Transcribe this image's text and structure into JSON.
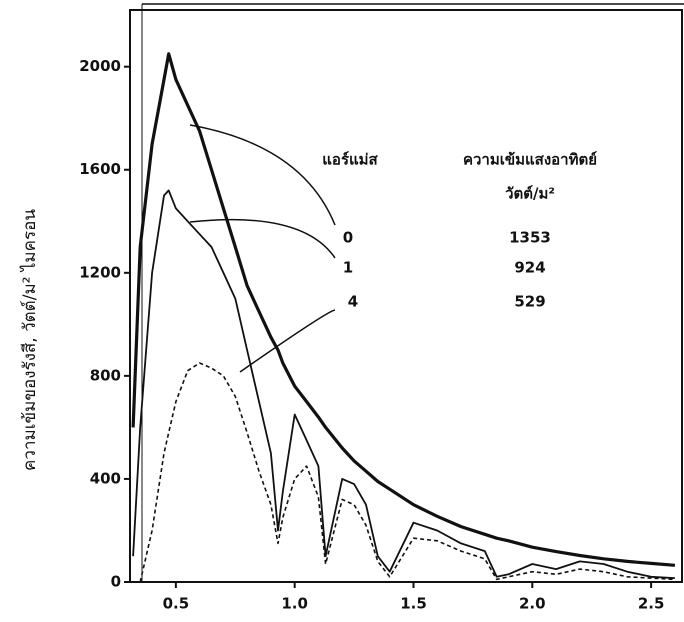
{
  "chart_data": {
    "type": "line",
    "y_label": "ความเข้มของรังสี, วัตต์/ม² ไมครอน",
    "legend_title": "แอร์แม่ส",
    "legend_value_title": "ความเข้มแสงอาทิตย์",
    "legend_value_unit": "วัตต์/ม²",
    "x": [
      0.32,
      0.35,
      0.4,
      0.45,
      0.47,
      0.5,
      0.55,
      0.6,
      0.65,
      0.7,
      0.75,
      0.8,
      0.85,
      0.9,
      0.93,
      0.95,
      1.0,
      1.05,
      1.1,
      1.13,
      1.2,
      1.25,
      1.3,
      1.35,
      1.4,
      1.5,
      1.6,
      1.7,
      1.8,
      1.85,
      1.9,
      2.0,
      2.1,
      2.2,
      2.3,
      2.4,
      2.5,
      2.6
    ],
    "series": [
      {
        "name": "0",
        "total": 1353,
        "color": "#111",
        "style": "thick",
        "values": [
          600,
          1300,
          1700,
          1950,
          2050,
          1950,
          1850,
          1750,
          1600,
          1450,
          1300,
          1150,
          1050,
          950,
          900,
          850,
          760,
          700,
          640,
          600,
          520,
          470,
          430,
          390,
          360,
          300,
          255,
          215,
          185,
          170,
          160,
          135,
          118,
          103,
          90,
          80,
          72,
          65
        ]
      },
      {
        "name": "1",
        "total": 924,
        "color": "#111",
        "style": "solid",
        "values": [
          100,
          600,
          1200,
          1500,
          1520,
          1450,
          1400,
          1350,
          1300,
          1200,
          1100,
          900,
          700,
          500,
          200,
          350,
          650,
          550,
          450,
          100,
          400,
          380,
          300,
          100,
          40,
          230,
          200,
          150,
          120,
          20,
          30,
          70,
          50,
          80,
          70,
          40,
          20,
          15
        ]
      },
      {
        "name": "4",
        "total": 529,
        "color": "#111",
        "style": "dashed",
        "values": [
          null,
          0,
          200,
          500,
          580,
          700,
          820,
          850,
          830,
          800,
          720,
          580,
          430,
          300,
          150,
          250,
          400,
          450,
          330,
          70,
          320,
          300,
          220,
          80,
          20,
          170,
          160,
          120,
          90,
          10,
          20,
          40,
          30,
          50,
          40,
          20,
          15,
          10
        ]
      }
    ],
    "xlim": [
      0.307,
      2.63
    ],
    "ylim": [
      0,
      2220
    ],
    "xticks": [
      0.5,
      {
        "value": 1,
        "label": "1.0"
      },
      1.5,
      {
        "value": 2,
        "label": "2.0"
      },
      2.5
    ],
    "yticks": [
      0,
      400,
      800,
      1200,
      1600,
      2000
    ]
  }
}
